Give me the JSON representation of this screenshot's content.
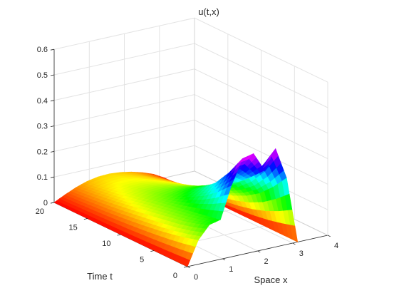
{
  "chart_data": {
    "type": "surface",
    "title": "u(t,x)",
    "xlabel": "Space x",
    "ylabel": "Time t",
    "zlabel": "",
    "xlim": [
      0,
      4
    ],
    "ylim": [
      0,
      20
    ],
    "zlim": [
      0,
      0.6
    ],
    "xticks": [
      "0",
      "1",
      "2",
      "3",
      "4"
    ],
    "yticks": [
      "0",
      "5",
      "10",
      "15",
      "20"
    ],
    "zticks": [
      "0",
      "0.1",
      "0.2",
      "0.3",
      "0.4",
      "0.5",
      "0.6"
    ],
    "grid": true,
    "colormap": "hsv",
    "x": [
      0,
      0.3142,
      0.6283,
      0.9425,
      1.2566,
      1.5708,
      1.885,
      2.1991,
      2.5133,
      2.8274,
      3.1416
    ],
    "t": [
      0,
      2,
      4,
      6,
      8,
      10,
      12,
      14,
      16,
      18,
      20
    ],
    "u": [
      [
        0.0,
        0.095,
        0.145,
        0.155,
        0.28,
        0.375,
        0.385,
        0.31,
        0.385,
        0.26,
        0.0
      ],
      [
        0.0,
        0.08,
        0.125,
        0.145,
        0.23,
        0.295,
        0.3,
        0.26,
        0.29,
        0.2,
        0.0
      ],
      [
        0.0,
        0.068,
        0.11,
        0.135,
        0.19,
        0.23,
        0.235,
        0.215,
        0.22,
        0.15,
        0.0
      ],
      [
        0.0,
        0.058,
        0.1,
        0.125,
        0.16,
        0.185,
        0.19,
        0.18,
        0.17,
        0.115,
        0.0
      ],
      [
        0.0,
        0.05,
        0.09,
        0.115,
        0.135,
        0.15,
        0.155,
        0.15,
        0.135,
        0.09,
        0.0
      ],
      [
        0.0,
        0.043,
        0.08,
        0.105,
        0.118,
        0.125,
        0.128,
        0.123,
        0.108,
        0.072,
        0.0
      ],
      [
        0.0,
        0.037,
        0.07,
        0.092,
        0.104,
        0.107,
        0.106,
        0.1,
        0.087,
        0.057,
        0.0
      ],
      [
        0.0,
        0.032,
        0.061,
        0.081,
        0.091,
        0.093,
        0.09,
        0.083,
        0.07,
        0.045,
        0.0
      ],
      [
        0.0,
        0.028,
        0.053,
        0.071,
        0.08,
        0.081,
        0.078,
        0.07,
        0.057,
        0.036,
        0.0
      ],
      [
        0.0,
        0.024,
        0.046,
        0.062,
        0.07,
        0.072,
        0.068,
        0.06,
        0.047,
        0.029,
        0.0
      ],
      [
        0.0,
        0.021,
        0.04,
        0.054,
        0.062,
        0.064,
        0.06,
        0.052,
        0.04,
        0.024,
        0.0
      ]
    ]
  }
}
